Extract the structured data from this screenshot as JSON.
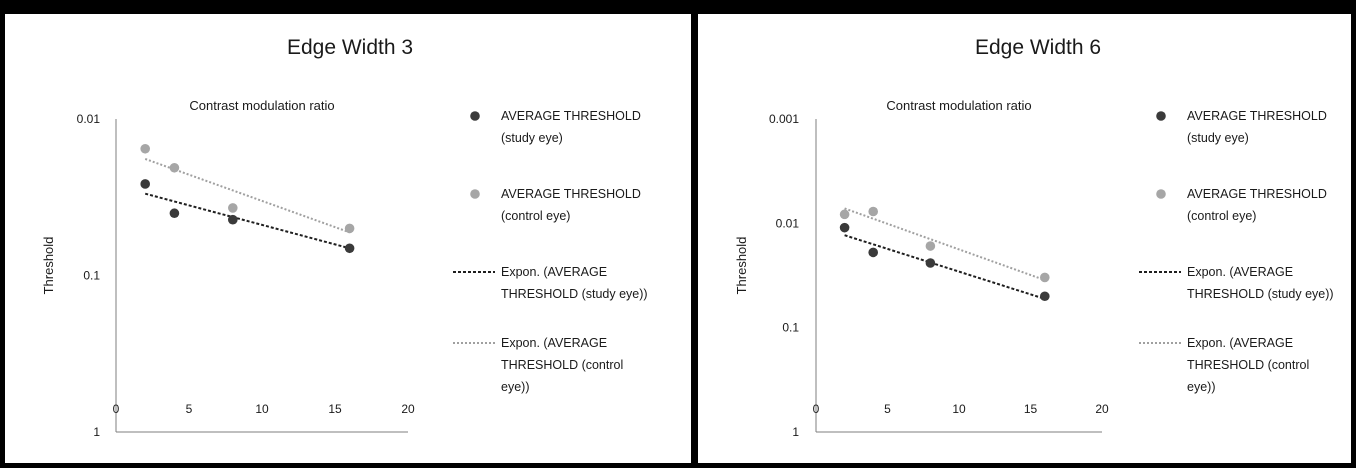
{
  "chart_data": [
    {
      "type": "scatter",
      "title": "Edge Width 3",
      "subtitle": "Contrast modulation ratio",
      "ylabel": "Threshold",
      "xlim": [
        0,
        20
      ],
      "xticks": [
        "0",
        "5",
        "10",
        "15",
        "20"
      ],
      "ylim": [
        1,
        0.01
      ],
      "yscale": "log-reversed",
      "yticks": [
        "0.01",
        "0.1",
        "1"
      ],
      "series": [
        {
          "name": [
            "AVERAGE THRESHOLD",
            "(study eye)"
          ],
          "kind": "points",
          "color": "#3a3a3a",
          "x": [
            2,
            4,
            8,
            16
          ],
          "y": [
            0.026,
            0.04,
            0.044,
            0.067
          ]
        },
        {
          "name": [
            "AVERAGE THRESHOLD",
            "(control eye)"
          ],
          "kind": "points",
          "color": "#a6a6a6",
          "x": [
            2,
            4,
            8,
            16
          ],
          "y": [
            0.0155,
            0.0205,
            0.037,
            0.05
          ]
        },
        {
          "name": [
            "Expon. (AVERAGE",
            "THRESHOLD (study eye))"
          ],
          "kind": "trend",
          "color": "#1f1f1f",
          "x": [
            2,
            16
          ],
          "y": [
            0.03,
            0.067
          ]
        },
        {
          "name": [
            "Expon. (AVERAGE",
            "THRESHOLD (control",
            "eye))"
          ],
          "kind": "trend",
          "color": "#a0a0a0",
          "x": [
            2,
            16
          ],
          "y": [
            0.018,
            0.053
          ]
        }
      ]
    },
    {
      "type": "scatter",
      "title": "Edge Width 6",
      "subtitle": "Contrast modulation ratio",
      "ylabel": "Threshold",
      "xlim": [
        0,
        20
      ],
      "xticks": [
        "0",
        "5",
        "10",
        "15",
        "20"
      ],
      "ylim": [
        1,
        0.001
      ],
      "yscale": "log-reversed",
      "yticks": [
        "0.001",
        "0.01",
        "0.1",
        "1"
      ],
      "series": [
        {
          "name": [
            "AVERAGE THRESHOLD",
            "(study eye)"
          ],
          "kind": "points",
          "color": "#3a3a3a",
          "x": [
            2,
            4,
            8,
            16
          ],
          "y": [
            0.011,
            0.019,
            0.024,
            0.05
          ]
        },
        {
          "name": [
            "AVERAGE THRESHOLD",
            "(control eye)"
          ],
          "kind": "points",
          "color": "#a6a6a6",
          "x": [
            2,
            4,
            8,
            16
          ],
          "y": [
            0.0082,
            0.0077,
            0.0165,
            0.033
          ]
        },
        {
          "name": [
            "Expon. (AVERAGE",
            "THRESHOLD (study eye))"
          ],
          "kind": "trend",
          "color": "#1f1f1f",
          "x": [
            2,
            16
          ],
          "y": [
            0.013,
            0.053
          ]
        },
        {
          "name": [
            "Expon. (AVERAGE",
            "THRESHOLD (control",
            "eye))"
          ],
          "kind": "trend",
          "color": "#a0a0a0",
          "x": [
            2,
            16
          ],
          "y": [
            0.0072,
            0.035
          ]
        }
      ]
    }
  ]
}
